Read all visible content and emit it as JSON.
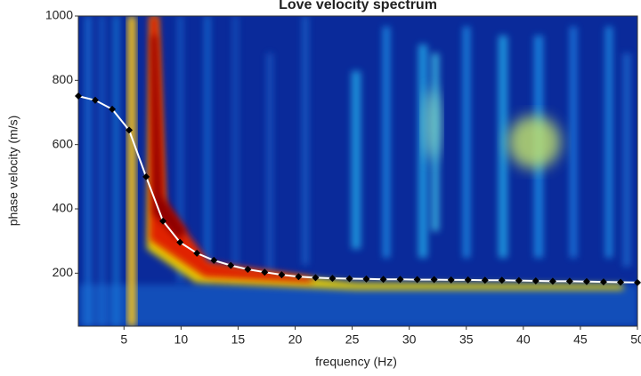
{
  "chart_data": {
    "type": "line",
    "title": "Love velocity spectrum",
    "x_label": "frequency (Hz)",
    "y_label": "phase velocity (m/s)",
    "xlim": [
      1,
      50
    ],
    "ylim": [
      35,
      1000
    ],
    "xticks": [
      5,
      10,
      15,
      20,
      25,
      30,
      35,
      40,
      45,
      50
    ],
    "yticks": [
      200,
      400,
      600,
      800,
      1000
    ],
    "line_color": "#ffffff",
    "marker_color": "#000000",
    "x": [
      1.0,
      2.48,
      3.97,
      5.45,
      6.94,
      8.42,
      9.91,
      11.39,
      12.88,
      14.36,
      15.85,
      17.33,
      18.82,
      20.3,
      21.79,
      23.27,
      24.76,
      26.24,
      27.73,
      29.21,
      30.7,
      32.18,
      33.67,
      35.15,
      36.64,
      38.12,
      39.61,
      41.09,
      42.58,
      44.06,
      45.55,
      47.03,
      48.52,
      50.0
    ],
    "values": [
      751,
      738,
      710,
      645,
      500,
      362,
      296,
      262,
      240,
      224,
      212,
      203,
      195,
      189,
      186,
      184,
      183,
      182,
      181,
      181,
      180,
      180,
      179,
      179,
      178,
      178,
      177,
      176,
      175,
      175,
      174,
      173,
      172,
      171
    ]
  }
}
